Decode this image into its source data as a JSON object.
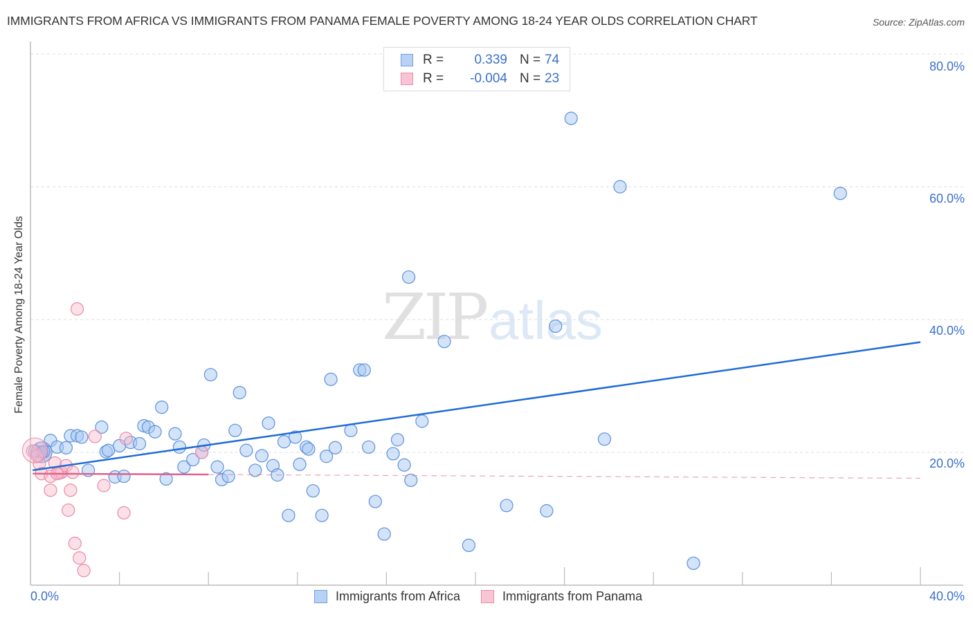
{
  "header": {
    "title": "IMMIGRANTS FROM AFRICA VS IMMIGRANTS FROM PANAMA FEMALE POVERTY AMONG 18-24 YEAR OLDS CORRELATION CHART",
    "source": "Source: ZipAtlas.com"
  },
  "watermark": {
    "zip": "ZIP",
    "atlas": "atlas"
  },
  "legend": {
    "rows": [
      {
        "r_label": "R =",
        "r_value": "0.339",
        "n_label": "N =",
        "n_value": "74",
        "fill": "#b8d2f5",
        "stroke": "#6f9ee0"
      },
      {
        "r_label": "R =",
        "r_value": "-0.004",
        "n_label": "N =",
        "n_value": "23",
        "fill": "#f9c4d4",
        "stroke": "#e88ea9"
      }
    ]
  },
  "axes": {
    "ylabel": "Female Poverty Among 18-24 Year Olds",
    "x_ticks": [
      "0.0%",
      "40.0%"
    ],
    "y_ticks": [
      "80.0%",
      "60.0%",
      "40.0%",
      "20.0%"
    ]
  },
  "bottom_legend": [
    {
      "label": "Immigrants from Africa",
      "fill": "#b8d2f5",
      "stroke": "#6f9ee0"
    },
    {
      "label": "Immigrants from Panama",
      "fill": "#f9c4d4",
      "stroke": "#e88ea9"
    }
  ],
  "colors": {
    "africa_fill": "rgba(168,200,242,0.5)",
    "africa_stroke": "#5b90dc",
    "africa_line": "#1e6bd6",
    "panama_fill": "rgba(248,186,205,0.45)",
    "panama_stroke": "#e889a6",
    "panama_line": "#e0628a",
    "grid": "#dddddd",
    "axis": "#bbbbbb",
    "tick_label": "#3a6fcb"
  },
  "chart_data": {
    "type": "scatter",
    "title": "IMMIGRANTS FROM AFRICA VS IMMIGRANTS FROM PANAMA FEMALE POVERTY AMONG 18-24 YEAR OLDS CORRELATION CHART",
    "xlabel": "",
    "ylabel": "Female Poverty Among 18-24 Year Olds",
    "xlim": [
      0,
      40
    ],
    "ylim": [
      0,
      80
    ],
    "x_tick_labels": [
      "0.0%",
      "40.0%"
    ],
    "y_tick_labels": [
      "20.0%",
      "40.0%",
      "60.0%",
      "80.0%"
    ],
    "grid": true,
    "legend_position": "top-center",
    "series": [
      {
        "name": "Immigrants from Africa",
        "r": 0.339,
        "n": 74,
        "trend": {
          "x0": 0.1,
          "y0": 17.3,
          "x1": 40.0,
          "y1": 36.6
        },
        "points": [
          [
            0.2,
            20.2
          ],
          [
            0.5,
            20.0
          ],
          [
            0.9,
            21.8
          ],
          [
            1.2,
            20.8
          ],
          [
            1.6,
            20.7
          ],
          [
            1.8,
            22.5
          ],
          [
            2.1,
            22.5
          ],
          [
            2.3,
            22.3
          ],
          [
            2.6,
            17.3
          ],
          [
            3.2,
            23.8
          ],
          [
            3.4,
            20.1
          ],
          [
            3.5,
            20.3
          ],
          [
            3.8,
            16.3
          ],
          [
            4.0,
            21.0
          ],
          [
            4.2,
            16.4
          ],
          [
            4.5,
            21.5
          ],
          [
            4.9,
            21.3
          ],
          [
            5.1,
            24.0
          ],
          [
            5.3,
            23.8
          ],
          [
            5.6,
            23.1
          ],
          [
            5.9,
            26.8
          ],
          [
            6.1,
            16.0
          ],
          [
            6.5,
            22.8
          ],
          [
            6.7,
            20.8
          ],
          [
            6.9,
            17.8
          ],
          [
            7.3,
            18.9
          ],
          [
            7.7,
            20.0
          ],
          [
            7.8,
            21.1
          ],
          [
            8.1,
            31.7
          ],
          [
            8.4,
            17.8
          ],
          [
            8.6,
            15.9
          ],
          [
            8.9,
            16.4
          ],
          [
            9.2,
            23.3
          ],
          [
            9.4,
            29.0
          ],
          [
            9.7,
            20.3
          ],
          [
            10.1,
            17.3
          ],
          [
            10.4,
            19.5
          ],
          [
            10.7,
            24.4
          ],
          [
            10.9,
            18.0
          ],
          [
            11.1,
            16.6
          ],
          [
            11.4,
            21.6
          ],
          [
            11.6,
            10.5
          ],
          [
            11.9,
            22.3
          ],
          [
            12.1,
            18.2
          ],
          [
            12.4,
            20.8
          ],
          [
            12.5,
            20.5
          ],
          [
            12.7,
            14.2
          ],
          [
            13.1,
            10.5
          ],
          [
            13.3,
            19.4
          ],
          [
            13.5,
            31.0
          ],
          [
            13.7,
            20.7
          ],
          [
            14.4,
            23.3
          ],
          [
            14.8,
            32.4
          ],
          [
            15.0,
            32.4
          ],
          [
            15.2,
            20.8
          ],
          [
            15.5,
            12.6
          ],
          [
            15.9,
            7.7
          ],
          [
            16.3,
            19.8
          ],
          [
            16.5,
            21.9
          ],
          [
            16.8,
            18.1
          ],
          [
            17.1,
            15.8
          ],
          [
            17.0,
            46.4
          ],
          [
            17.6,
            24.7
          ],
          [
            18.6,
            36.7
          ],
          [
            19.7,
            6.0
          ],
          [
            21.4,
            12.0
          ],
          [
            23.2,
            11.2
          ],
          [
            23.6,
            39.0
          ],
          [
            24.3,
            70.3
          ],
          [
            25.8,
            22.0
          ],
          [
            26.5,
            60.0
          ],
          [
            29.8,
            3.3
          ],
          [
            36.4,
            59.0
          ],
          [
            0.6,
            20.1
          ]
        ]
      },
      {
        "name": "Immigrants from Panama",
        "r": -0.004,
        "n": 23,
        "trend": {
          "x0": 0.1,
          "y0": 16.8,
          "x1": 40.0,
          "y1": 16.1,
          "solid_until_x": 8.0
        },
        "points": [
          [
            0.1,
            20.2
          ],
          [
            0.4,
            18.3
          ],
          [
            0.5,
            16.8
          ],
          [
            0.9,
            14.3
          ],
          [
            0.9,
            16.4
          ],
          [
            1.1,
            18.4
          ],
          [
            1.3,
            16.9
          ],
          [
            1.4,
            17.0
          ],
          [
            1.6,
            18.0
          ],
          [
            1.7,
            11.3
          ],
          [
            1.8,
            14.3
          ],
          [
            1.9,
            17.0
          ],
          [
            2.0,
            6.3
          ],
          [
            2.1,
            41.6
          ],
          [
            2.2,
            4.1
          ],
          [
            2.4,
            2.2
          ],
          [
            2.9,
            22.4
          ],
          [
            3.3,
            15.0
          ],
          [
            4.2,
            10.9
          ],
          [
            4.3,
            22.1
          ],
          [
            7.7,
            20.0
          ],
          [
            0.3,
            19.5
          ],
          [
            1.2,
            16.8
          ]
        ]
      }
    ]
  }
}
